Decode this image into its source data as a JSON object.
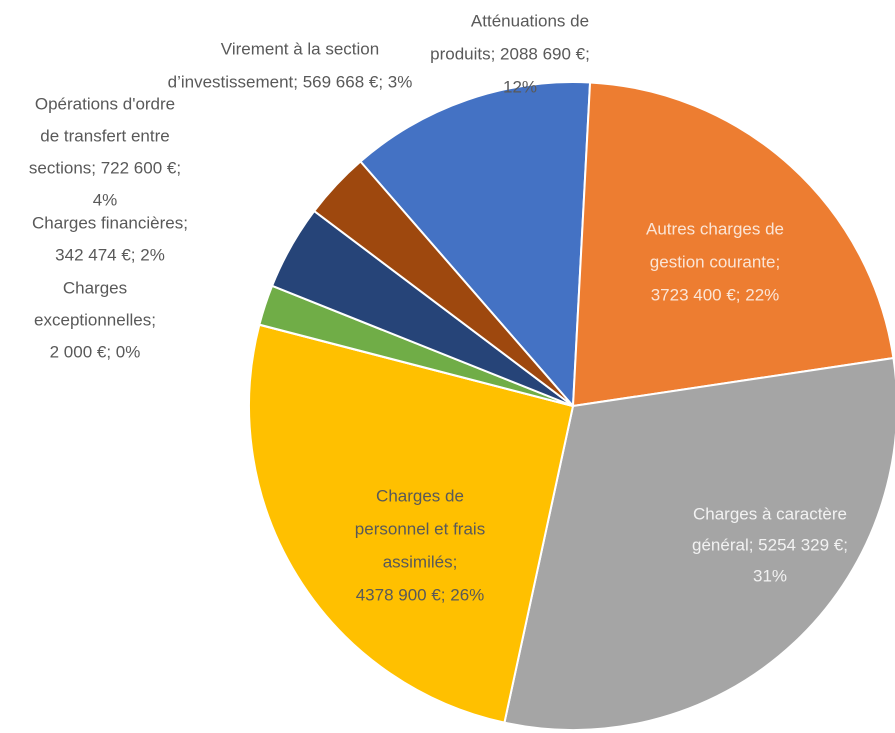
{
  "chart_data": {
    "type": "pie",
    "values": [
      2088690,
      3723400,
      5254329,
      4378900,
      2000,
      342474,
      722600,
      569668
    ],
    "colors": [
      "#4472c4",
      "#ed7d31",
      "#a5a5a5",
      "#ffc000",
      "#5b9bd5",
      "#70ad47",
      "#264478",
      "#9e480e"
    ],
    "value_labels": [
      [
        "Atténuations de",
        "produits; 2088 690 €;",
        "12%"
      ],
      [
        "Autres charges de",
        "gestion courante;",
        "3723 400 €; 22%"
      ],
      [
        "Charges à caractère",
        "général; 5254 329 €;",
        "31%"
      ],
      [
        "Charges de",
        "personnel et frais",
        "assimilés;",
        "4378 900 €; 26%"
      ],
      [
        "Charges",
        "exceptionnelles;",
        "2 000 €; 0%"
      ],
      [
        "Charges financières;",
        "342 474 €; 2%"
      ],
      [
        "Opérations d'ordre",
        "de transfert entre",
        "sections; 722 600 €;",
        "4%"
      ],
      [
        "Virement à la section",
        "d’investissement; 569 668 €; 3%"
      ]
    ]
  }
}
